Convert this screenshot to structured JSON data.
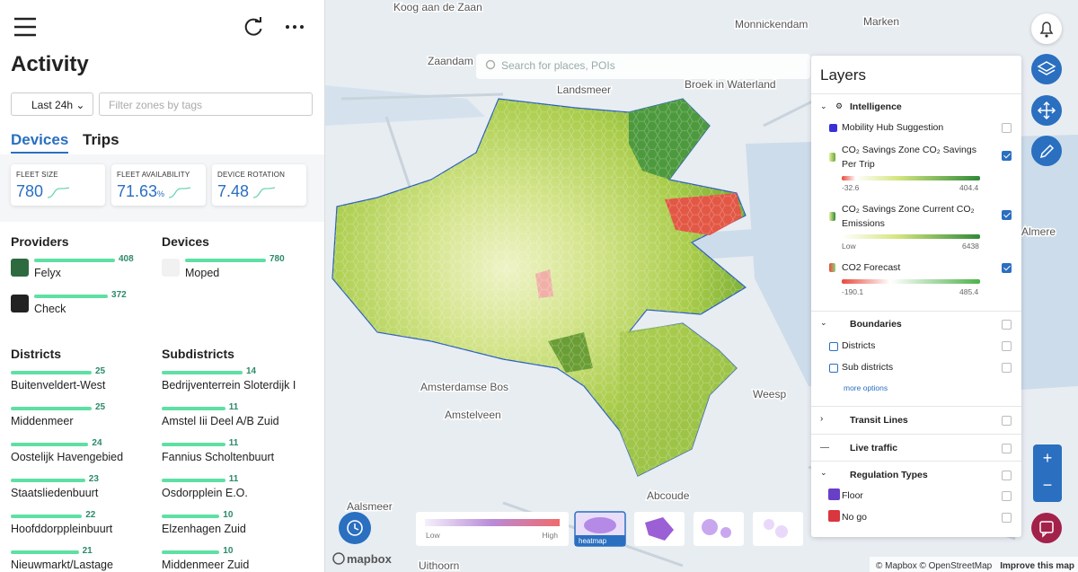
{
  "sidebar": {
    "title": "Activity",
    "time_filter": "Last 24h",
    "tag_filter_placeholder": "Filter zones by tags",
    "tabs": [
      "Devices",
      "Trips"
    ],
    "stats": [
      {
        "label": "FLEET SIZE",
        "value": "780"
      },
      {
        "label": "FLEET AVAILABILITY",
        "value": "71.63",
        "unit": "%"
      },
      {
        "label": "DEVICE ROTATION",
        "value": "7.48"
      }
    ],
    "providers": {
      "title": "Providers",
      "items": [
        {
          "name": "Felyx",
          "count": 408
        },
        {
          "name": "Check",
          "count": 372
        }
      ]
    },
    "devices": {
      "title": "Devices",
      "items": [
        {
          "name": "Moped",
          "count": 780
        }
      ]
    },
    "districts": {
      "title": "Districts",
      "items": [
        {
          "name": "Buitenveldert-West",
          "count": 25
        },
        {
          "name": "Middenmeer",
          "count": 25
        },
        {
          "name": "Oostelijk Havengebied",
          "count": 24
        },
        {
          "name": "Staatsliedenbuurt",
          "count": 23
        },
        {
          "name": "Hoofddorppleinbuurt",
          "count": 22
        },
        {
          "name": "Nieuwmarkt/Lastage",
          "count": 21
        }
      ]
    },
    "subdistricts": {
      "title": "Subdistricts",
      "items": [
        {
          "name": "Bedrijventerrein Sloterdijk I",
          "count": 14
        },
        {
          "name": "Amstel Iii Deel A/B Zuid",
          "count": 11
        },
        {
          "name": "Fannius Scholtenbuurt",
          "count": 11
        },
        {
          "name": "Osdorpplein E.O.",
          "count": 11
        },
        {
          "name": "Elzenhagen Zuid",
          "count": 10
        },
        {
          "name": "Middenmeer Zuid",
          "count": 10
        }
      ]
    }
  },
  "map": {
    "search_placeholder": "Search for places, POIs",
    "place_labels": [
      {
        "text": "Koog aan de Zaan"
      },
      {
        "text": "Zaandam"
      },
      {
        "text": "Landsmeer"
      },
      {
        "text": "Broek in Waterland"
      },
      {
        "text": "Monnickendam"
      },
      {
        "text": "Marken"
      },
      {
        "text": "Almere"
      },
      {
        "text": "Amsterdamse Bos"
      },
      {
        "text": "Amstelveen"
      },
      {
        "text": "Weesp"
      },
      {
        "text": "Abcoude"
      },
      {
        "text": "Aalsmeer"
      },
      {
        "text": "Uithoorn"
      }
    ],
    "legend": {
      "low": "Low",
      "high": "High"
    },
    "heatmap_label": "heatmap",
    "logo": "mapbox",
    "attribution": "© Mapbox © OpenStreetMap",
    "improve": "Improve this map"
  },
  "layers_panel": {
    "title": "Layers",
    "intelligence": "Intelligence",
    "mobility_hub": "Mobility Hub Suggestion",
    "savings_per_trip": {
      "name": "CO₂ Savings Zone CO₂ Savings Per Trip",
      "min": "-32.6",
      "max": "404.4"
    },
    "current_emissions": {
      "name": "CO₂ Savings Zone Current CO₂ Emissions",
      "min": "Low",
      "max": "6438"
    },
    "forecast": {
      "name": "CO2 Forecast",
      "min": "-190.1",
      "max": "485.4"
    },
    "boundaries": "Boundaries",
    "districts": "Districts",
    "sub_districts": "Sub districts",
    "more_options": "more options",
    "transit_lines": "Transit Lines",
    "live_traffic": "Live traffic",
    "regulation_types": "Regulation Types",
    "floor": "Floor",
    "no_go": "No go"
  }
}
